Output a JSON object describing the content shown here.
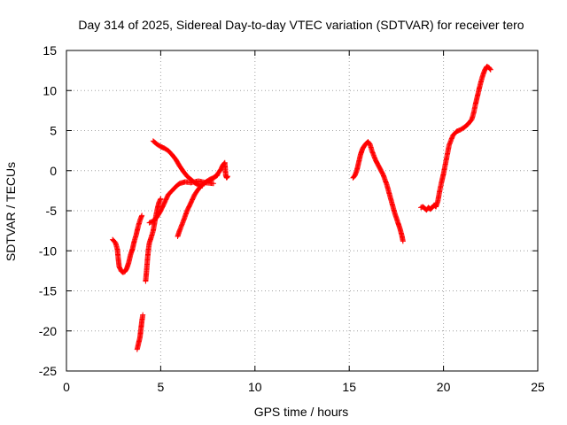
{
  "chart_data": {
    "type": "scatter",
    "title": "Day 314 of 2025, Sidereal Day-to-day VTEC variation (SDTVAR) for receiver tero",
    "xlabel": "GPS time / hours",
    "ylabel": "SDTVAR / TECUs",
    "xlim": [
      0,
      25
    ],
    "ylim": [
      -25,
      15
    ],
    "xticks": [
      0,
      5,
      10,
      15,
      20,
      25
    ],
    "yticks": [
      -25,
      -20,
      -15,
      -10,
      -5,
      0,
      5,
      10,
      15
    ],
    "grid": true,
    "marker": "+",
    "color": "#ff0000",
    "series": [
      {
        "x": [
          2.45,
          2.6,
          2.7,
          2.75,
          2.8,
          2.9,
          3.0,
          3.1,
          3.2,
          3.3,
          3.4,
          3.5,
          3.6,
          3.7,
          3.8,
          3.9,
          4.0
        ],
        "y": [
          -8.6,
          -9.0,
          -9.8,
          -11.0,
          -12.0,
          -12.5,
          -12.7,
          -12.6,
          -12.2,
          -11.5,
          -10.5,
          -9.8,
          -8.8,
          -8.0,
          -7.0,
          -6.2,
          -5.6
        ]
      },
      {
        "x": [
          3.75,
          3.8,
          3.9,
          3.95,
          4.0,
          4.05
        ],
        "y": [
          -22.3,
          -21.8,
          -20.8,
          -19.8,
          -18.8,
          -18.0
        ]
      },
      {
        "x": [
          4.2,
          4.25,
          4.3,
          4.35,
          4.4,
          4.5,
          4.6,
          4.7,
          4.8,
          4.9,
          5.0
        ],
        "y": [
          -13.8,
          -12.5,
          -11.0,
          -9.8,
          -9.0,
          -8.3,
          -7.5,
          -6.2,
          -5.0,
          -4.0,
          -3.5
        ]
      },
      {
        "x": [
          4.4,
          4.6,
          4.8,
          5.0,
          5.2,
          5.4,
          5.6,
          5.8,
          6.0,
          6.3,
          6.6,
          7.0,
          7.4,
          7.8
        ],
        "y": [
          -6.5,
          -6.3,
          -5.8,
          -5.0,
          -4.0,
          -3.0,
          -2.5,
          -2.0,
          -1.6,
          -1.4,
          -1.5,
          -1.3,
          -1.5,
          -1.6
        ]
      },
      {
        "x": [
          4.6,
          4.8,
          5.0,
          5.2,
          5.4,
          5.6,
          5.8,
          6.0,
          6.2,
          6.4,
          6.6,
          6.8,
          7.0,
          7.2
        ],
        "y": [
          3.7,
          3.3,
          3.0,
          2.8,
          2.5,
          2.0,
          1.4,
          0.6,
          -0.1,
          -0.7,
          -1.1,
          -1.5,
          -1.8,
          -1.9
        ]
      },
      {
        "x": [
          5.9,
          6.0,
          6.2,
          6.4,
          6.6,
          6.8,
          7.0,
          7.2,
          7.4,
          7.6,
          7.8,
          8.0
        ],
        "y": [
          -8.2,
          -7.5,
          -6.3,
          -5.0,
          -4.0,
          -3.0,
          -2.3,
          -1.8,
          -1.4,
          -1.1,
          -0.9,
          -0.6
        ]
      },
      {
        "x": [
          7.6,
          7.8,
          8.0,
          8.2,
          8.3,
          8.4,
          8.45,
          8.5,
          8.55
        ],
        "y": [
          -1.2,
          -0.9,
          -0.5,
          0.2,
          0.7,
          1.0,
          -0.6,
          -0.9,
          -0.7
        ]
      },
      {
        "x": [
          15.2,
          15.3,
          15.4,
          15.5,
          15.6,
          15.7,
          15.8,
          15.9,
          16.0,
          16.1,
          16.2,
          16.4,
          16.6,
          16.8,
          17.0,
          17.2,
          17.4,
          17.6,
          17.7,
          17.8,
          17.85
        ],
        "y": [
          -0.9,
          -0.6,
          0.0,
          1.0,
          2.0,
          2.7,
          3.1,
          3.4,
          3.6,
          3.3,
          2.5,
          1.3,
          0.4,
          -0.5,
          -1.8,
          -3.5,
          -5.2,
          -6.6,
          -7.3,
          -8.2,
          -8.8
        ]
      },
      {
        "x": [
          18.8,
          18.9,
          19.0,
          19.1,
          19.2,
          19.3,
          19.4,
          19.5,
          19.6,
          19.7,
          19.8,
          19.9,
          20.0,
          20.1,
          20.2,
          20.3,
          20.5,
          20.7,
          20.9,
          21.1,
          21.3,
          21.5,
          21.6,
          21.7,
          21.8,
          21.9,
          22.0,
          22.1,
          22.2,
          22.3,
          22.4,
          22.5
        ],
        "y": [
          -4.6,
          -4.5,
          -4.7,
          -4.9,
          -4.6,
          -4.8,
          -4.6,
          -4.3,
          -4.5,
          -3.8,
          -2.5,
          -1.4,
          -0.4,
          0.8,
          2.0,
          3.2,
          4.4,
          4.9,
          5.1,
          5.4,
          5.8,
          6.4,
          7.2,
          8.3,
          9.3,
          10.3,
          11.2,
          12.0,
          12.6,
          13.0,
          12.9,
          12.6
        ]
      }
    ]
  }
}
